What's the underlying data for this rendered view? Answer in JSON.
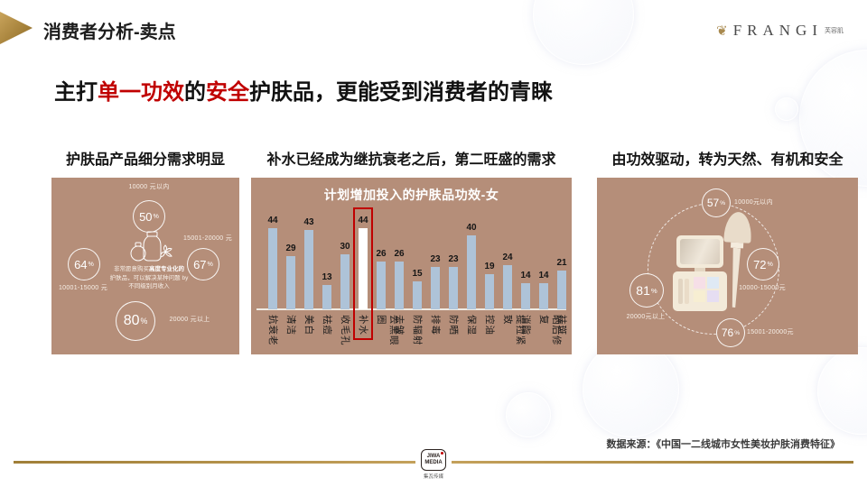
{
  "slide": {
    "header_title": "消费者分析-卖点",
    "brand": {
      "name": "FRANGI",
      "cn": "芙容肌"
    },
    "main_title": {
      "part1": "主打",
      "red1": "单一功效",
      "part2": "的",
      "red2": "安全",
      "part3": "护肤品，更能受到消费者的青睐"
    },
    "footer": {
      "source": "数据来源：《中国一二线城市女性美妆护肤消费特征》",
      "logo_top": "JIWA",
      "logo_bottom": "MEDIA",
      "logo_cn": "集瓦传媒"
    }
  },
  "left_panel": {
    "title": "护肤品产品细分需求明显",
    "circles": [
      {
        "pct": "50",
        "label": "10000 元以内"
      },
      {
        "pct": "64",
        "label": "10001-15000 元"
      },
      {
        "pct": "67",
        "label": "15001-20000 元"
      },
      {
        "pct": "80",
        "label": "20000 元以上"
      }
    ],
    "note": {
      "line1_normal": "非常愿意购买",
      "line1_bold": "高度专业化的",
      "line2": "护肤品，可以解决某种问题 by",
      "line3": "不同级别月收入"
    }
  },
  "middle_panel": {
    "title": "补水已经成为继抗衰老之后，第二旺盛的需求"
  },
  "right_panel": {
    "title": "由功效驱动，转为天然、有机和安全",
    "circles": [
      {
        "pct": "57",
        "label": "10000元以内"
      },
      {
        "pct": "72",
        "label": "10000-15000元"
      },
      {
        "pct": "81",
        "label": "20000元以上"
      },
      {
        "pct": "76",
        "label": "15001-20000元"
      }
    ]
  },
  "chart_data": {
    "type": "bar",
    "title": "计划增加投入的护肤品功效-女",
    "categories": [
      "抗衰老",
      "清洁",
      "美白",
      "祛痘",
      "收毛孔",
      "补水",
      "去黑眼圈",
      "去皱",
      "防辐射",
      "排毒",
      "防晒",
      "保湿",
      "控油",
      "提拉紧致",
      "消脂",
      "晒后修复",
      "祛斑"
    ],
    "values": [
      44,
      29,
      43,
      13,
      30,
      44,
      26,
      26,
      15,
      23,
      23,
      40,
      19,
      24,
      14,
      14,
      21
    ],
    "highlight_index": 5,
    "highlight_category": "补水",
    "ylim": [
      0,
      46
    ],
    "xlabel": "",
    "ylabel": "",
    "grid": "off",
    "legend": "none",
    "bar_color": "#aec3d8",
    "highlight_fill": "#ffffff",
    "highlight_border": "#c00000"
  },
  "misc": {
    "percent_sign": "%"
  }
}
